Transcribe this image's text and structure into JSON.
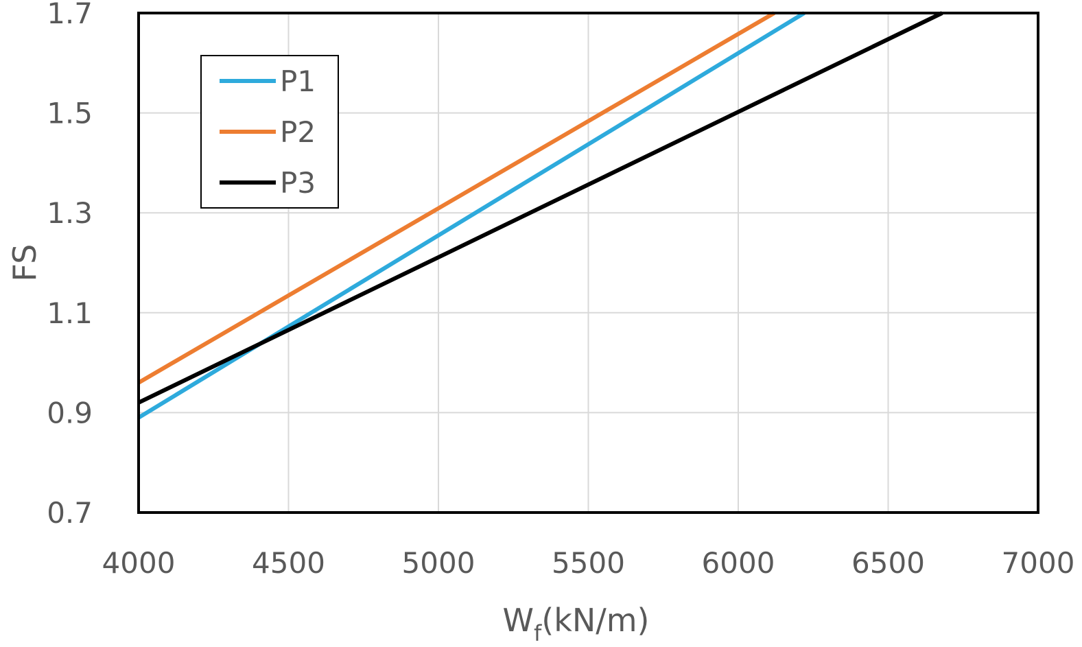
{
  "chart_data": {
    "type": "line",
    "xlabel_main": "W",
    "xlabel_sub": "f",
    "xlabel_unit": "(kN/m)",
    "ylabel": "FS",
    "xlim": [
      4000,
      7000
    ],
    "ylim": [
      0.7,
      1.7
    ],
    "xticks": [
      4000,
      4500,
      5000,
      5500,
      6000,
      6500,
      7000
    ],
    "yticks": [
      0.7,
      0.9,
      1.1,
      1.3,
      1.5,
      1.7
    ],
    "grid": true,
    "legend_position": "top-left",
    "series": [
      {
        "name": "P1",
        "color": "#2eaadc",
        "x": [
          4000,
          6220
        ],
        "y": [
          0.89,
          1.7
        ]
      },
      {
        "name": "P2",
        "color": "#ed7d31",
        "x": [
          4000,
          6120
        ],
        "y": [
          0.96,
          1.7
        ]
      },
      {
        "name": "P3",
        "color": "#000000",
        "x": [
          4000,
          6680
        ],
        "y": [
          0.92,
          1.7
        ]
      }
    ]
  }
}
